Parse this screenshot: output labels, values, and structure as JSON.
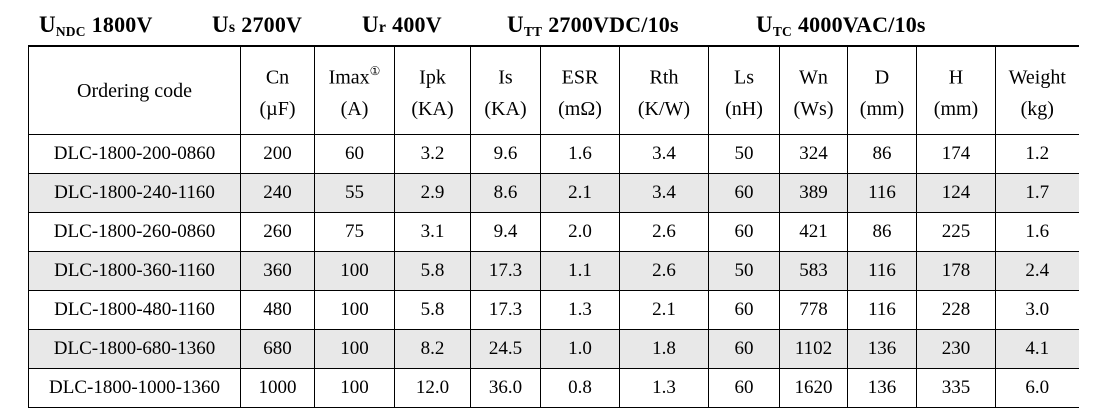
{
  "title": {
    "items": [
      {
        "base": "U",
        "sub": "NDC",
        "value": "1800V"
      },
      {
        "base": "U",
        "sub": "s",
        "value": "2700V"
      },
      {
        "base": "U",
        "sub": "r",
        "value": "400V"
      },
      {
        "base": "U",
        "sub": "TT",
        "value": "2700VDC/10s"
      },
      {
        "base": "U",
        "sub": "TC",
        "value": "4000VAC/10s"
      }
    ]
  },
  "table": {
    "ordering_header": "Ordering code",
    "columns": [
      {
        "label": "Cn",
        "sup": "",
        "unit": "(µF)"
      },
      {
        "label": "Imax",
        "sup": "①",
        "unit": "(A)"
      },
      {
        "label": "Ipk",
        "sup": "",
        "unit": "(KA)"
      },
      {
        "label": "Is",
        "sup": "",
        "unit": "(KA)"
      },
      {
        "label": "ESR",
        "sup": "",
        "unit": "(mΩ)"
      },
      {
        "label": "Rth",
        "sup": "",
        "unit": "(K/W)"
      },
      {
        "label": "Ls",
        "sup": "",
        "unit": "(nH)"
      },
      {
        "label": "Wn",
        "sup": "",
        "unit": "(Ws)"
      },
      {
        "label": "D",
        "sup": "",
        "unit": "(mm)"
      },
      {
        "label": "H",
        "sup": "",
        "unit": "(mm)"
      },
      {
        "label": "Weight",
        "sup": "",
        "unit": "(kg)"
      }
    ],
    "rows": [
      {
        "code": "DLC-1800-200-0860",
        "values": [
          "200",
          "60",
          "3.2",
          "9.6",
          "1.6",
          "3.4",
          "50",
          "324",
          "86",
          "174",
          "1.2"
        ]
      },
      {
        "code": "DLC-1800-240-1160",
        "values": [
          "240",
          "55",
          "2.9",
          "8.6",
          "2.1",
          "3.4",
          "60",
          "389",
          "116",
          "124",
          "1.7"
        ]
      },
      {
        "code": "DLC-1800-260-0860",
        "values": [
          "260",
          "75",
          "3.1",
          "9.4",
          "2.0",
          "2.6",
          "60",
          "421",
          "86",
          "225",
          "1.6"
        ]
      },
      {
        "code": "DLC-1800-360-1160",
        "values": [
          "360",
          "100",
          "5.8",
          "17.3",
          "1.1",
          "2.6",
          "50",
          "583",
          "116",
          "178",
          "2.4"
        ]
      },
      {
        "code": "DLC-1800-480-1160",
        "values": [
          "480",
          "100",
          "5.8",
          "17.3",
          "1.3",
          "2.1",
          "60",
          "778",
          "116",
          "228",
          "3.0"
        ]
      },
      {
        "code": "DLC-1800-680-1360",
        "values": [
          "680",
          "100",
          "8.2",
          "24.5",
          "1.0",
          "1.8",
          "60",
          "1102",
          "136",
          "230",
          "4.1"
        ]
      },
      {
        "code": "DLC-1800-1000-1360",
        "values": [
          "1000",
          "100",
          "12.0",
          "36.0",
          "0.8",
          "1.3",
          "60",
          "1620",
          "136",
          "335",
          "6.0"
        ]
      }
    ]
  },
  "colors": {
    "row_shade": "#e8e8e8",
    "border": "#000000",
    "text": "#000000"
  }
}
